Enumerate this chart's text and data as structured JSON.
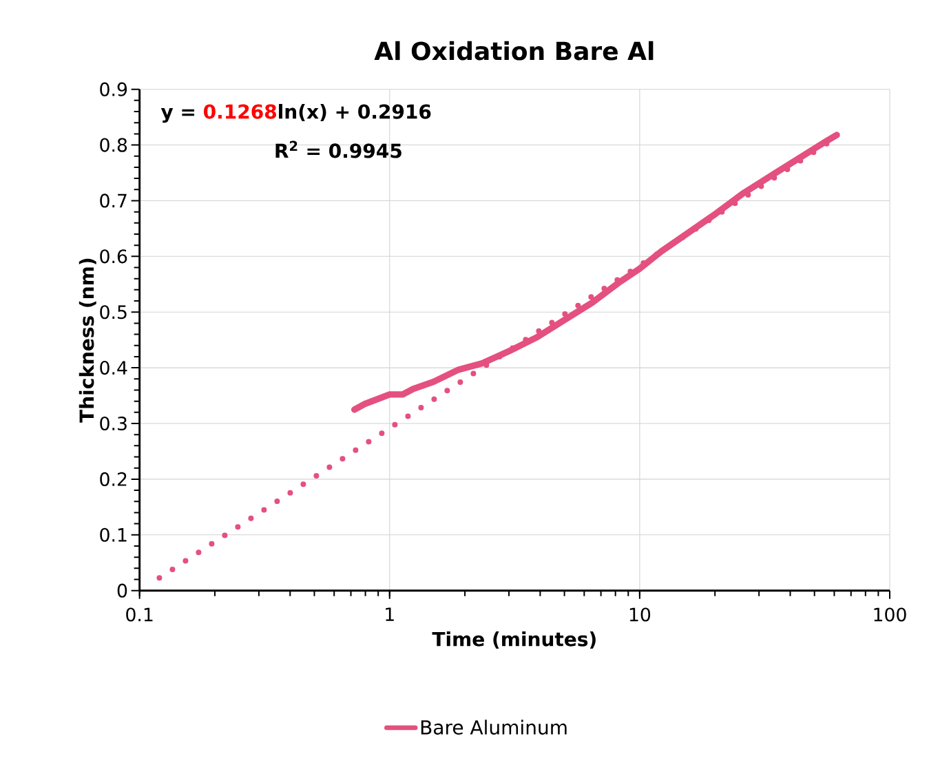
{
  "chart_data": {
    "type": "line",
    "title": "Al Oxidation Bare Al",
    "xlabel": "Time (minutes)",
    "ylabel": "Thickness (nm)",
    "log": "x",
    "xlim": [
      0.1,
      100
    ],
    "xticks": [
      0.1,
      1,
      10,
      100
    ],
    "ylim": [
      0,
      0.9
    ],
    "yticks": [
      0,
      0.1,
      0.2,
      0.3,
      0.4,
      0.5,
      0.6,
      0.7,
      0.8,
      0.9
    ],
    "grid": true,
    "legend": "bottom",
    "annotations": [
      "y =",
      "0.1268",
      "ln(x) + 0.2916",
      "R$^{2}$ = 0.9945"
    ],
    "series": [
      {
        "name": "Bare Aluminum",
        "color": "#e4507f",
        "x": [
          0.723,
          0.796,
          1,
          1.128,
          1.241,
          1.5,
          1.874,
          2.34,
          3.01,
          3.89,
          5.01,
          6.46,
          8.32,
          10,
          12.2,
          15.7,
          20.2,
          26.1,
          33.6,
          43.3,
          55.8,
          61.4
        ],
        "values": [
          0.325,
          0.335,
          0.352,
          0.352,
          0.362,
          0.375,
          0.396,
          0.408,
          0.43,
          0.455,
          0.486,
          0.517,
          0.554,
          0.578,
          0.609,
          0.643,
          0.677,
          0.714,
          0.745,
          0.776,
          0.807,
          0.818
        ]
      },
      {
        "type": "line",
        "line_style": "dotted",
        "color": "#e4507f",
        "x": [
          0.12,
          61.4
        ],
        "values": [
          0.0227,
          0.814
        ]
      }
    ]
  }
}
